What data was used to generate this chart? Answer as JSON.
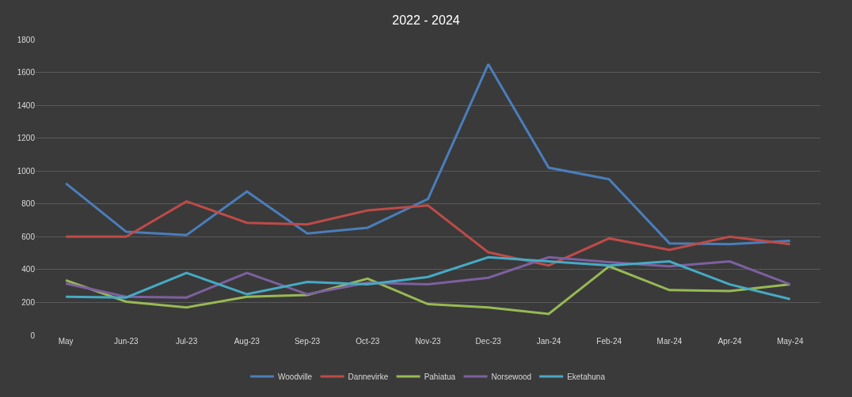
{
  "chart_data": {
    "type": "line",
    "title": "2022 - 2024",
    "categories": [
      "May",
      "Jun-23",
      "Jul-23",
      "Aug-23",
      "Sep-23",
      "Oct-23",
      "Nov-23",
      "Dec-23",
      "Jan-24",
      "Feb-24",
      "Mar-24",
      "Apr-24",
      "May-24"
    ],
    "series": [
      {
        "name": "Woodville",
        "color": "#4a7ebb",
        "values": [
          925,
          630,
          610,
          875,
          620,
          655,
          830,
          1650,
          1020,
          950,
          560,
          555,
          575
        ]
      },
      {
        "name": "Dannevirke",
        "color": "#be4b48",
        "values": [
          600,
          600,
          815,
          685,
          675,
          760,
          790,
          505,
          425,
          590,
          520,
          600,
          555
        ]
      },
      {
        "name": "Pahiatua",
        "color": "#98b954",
        "values": [
          335,
          205,
          170,
          235,
          245,
          345,
          190,
          170,
          130,
          420,
          275,
          270,
          310
        ]
      },
      {
        "name": "Norsewood",
        "color": "#7d60a0",
        "values": [
          315,
          235,
          230,
          380,
          250,
          320,
          310,
          350,
          475,
          445,
          420,
          450,
          310
        ]
      },
      {
        "name": "Eketahuna",
        "color": "#46aac5",
        "values": [
          235,
          230,
          380,
          250,
          325,
          310,
          355,
          475,
          450,
          425,
          450,
          310,
          220
        ]
      }
    ],
    "ylim": [
      0,
      1800
    ],
    "yticks": [
      0,
      200,
      400,
      600,
      800,
      1000,
      1200,
      1400,
      1600,
      1800
    ],
    "grid": "y",
    "legend": "bottom",
    "marker": "none",
    "line_style": "solid"
  }
}
